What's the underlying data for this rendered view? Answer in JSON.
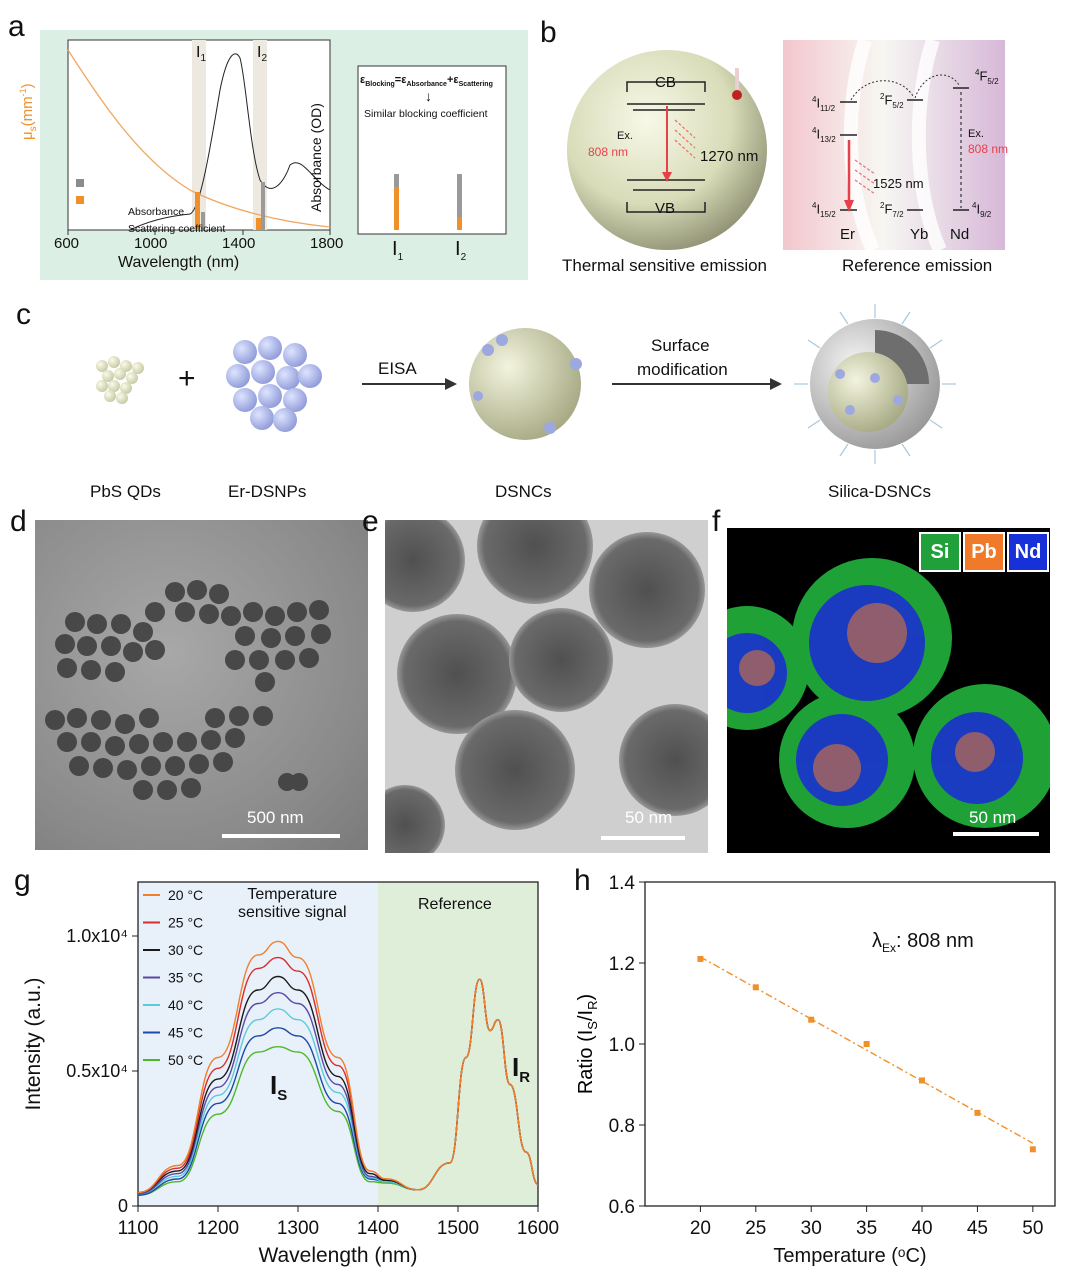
{
  "panels": {
    "a": {
      "label": "a",
      "ylabel_left_main": "μ",
      "ylabel_left_sub": "s",
      "ylabel_left_unit": "(mm",
      "ylabel_left_sup": "-1",
      "ylabel_left_close": ")",
      "ylabel_right": "Absorbance (OD)",
      "xlabel": "Wavelength (nm)",
      "xticks": [
        "600",
        "1000",
        "1400",
        "1800"
      ],
      "band1": "I",
      "band1_sub": "1",
      "band2": "I",
      "band2_sub": "2",
      "legend": [
        {
          "label": "Absorbance",
          "color": "#8c8c8c"
        },
        {
          "label": "Scattering coefficient",
          "color": "#f0902a"
        }
      ],
      "inset": {
        "eq_lhs": "ε",
        "eq_lhs_sub": "Blocking",
        "eq_eq": "=",
        "eq_t1": "ε",
        "eq_t1_sub": "Absorbance",
        "eq_plus": "+",
        "eq_t2": "ε",
        "eq_t2_sub": "Scattering",
        "arrow": "↓",
        "text": "Similar blocking coefficient",
        "bar1": "I",
        "bar1_sub": "1",
        "bar2": "I",
        "bar2_sub": "2"
      },
      "bg_color": "#dcefe4",
      "scatter_color": "#f0a860"
    },
    "b": {
      "label": "b",
      "cb": "CB",
      "vb": "VB",
      "ex": "Ex.",
      "ex_nm": "808 nm",
      "emission1": "1270 nm",
      "caption1": "Thermal sensitive emission",
      "levels": {
        "i112": "4",
        "i112_main": "I",
        "i112_sub": "11/2",
        "i132": "4",
        "i132_main": "I",
        "i132_sub": "13/2",
        "i152": "4",
        "i152_main": "I",
        "i152_sub": "15/2",
        "f52yb": "2",
        "f52yb_main": "F",
        "f52yb_sub": "5/2",
        "f72": "2",
        "f72_main": "F",
        "f72_sub": "7/2",
        "f52nd": "4",
        "f52nd_main": "F",
        "f52nd_sub": "5/2",
        "i92": "4",
        "i92_main": "I",
        "i92_sub": "9/2"
      },
      "emission2": "1525 nm",
      "ex2": "Ex.",
      "ex2_nm": "808 nm",
      "ion_er": "Er",
      "ion_yb": "Yb",
      "ion_nd": "Nd",
      "caption2": "Reference emission",
      "accent": "#e8404a"
    },
    "c": {
      "label": "c",
      "plus": "+",
      "arrow1": "EISA",
      "arrow2_line1": "Surface",
      "arrow2_line2": "modification",
      "items": [
        "PbS QDs",
        "Er-DSNPs",
        "DSNCs",
        "Silica-DSNCs"
      ]
    },
    "d": {
      "label": "d",
      "scale": "500 nm"
    },
    "e": {
      "label": "e",
      "scale": "50 nm"
    },
    "f": {
      "label": "f",
      "scale": "50 nm",
      "legend": [
        {
          "label": "Si",
          "color": "#1fa03a"
        },
        {
          "label": "Pb",
          "color": "#f07a2a"
        },
        {
          "label": "Nd",
          "color": "#1730d8"
        }
      ]
    },
    "g": {
      "label": "g",
      "region1_line1": "Temperature",
      "region1_line2": "sensitive signal",
      "region2": "Reference",
      "is_main": "I",
      "is_sub": "S",
      "ir_main": "I",
      "ir_sub": "R",
      "legend_unit": "°C"
    },
    "h": {
      "label": "h",
      "annotation_main": "λ",
      "annotation_sub": "Ex",
      "annotation_rest": ": 808 nm"
    }
  },
  "chart_data": [
    {
      "id": "g",
      "type": "line",
      "xlabel": "Wavelength (nm)",
      "ylabel": "Intensity (a.u.)",
      "xlim": [
        1100,
        1600
      ],
      "ylim": [
        0,
        12000
      ],
      "xticks": [
        1100,
        1200,
        1300,
        1400,
        1500,
        1600
      ],
      "yticks": [
        {
          "v": 0,
          "label": "0"
        },
        {
          "v": 5000,
          "label": "0.5x10⁴"
        },
        {
          "v": 10000,
          "label": "1.0x10⁴"
        }
      ],
      "x": [
        1100,
        1150,
        1200,
        1250,
        1275,
        1300,
        1350,
        1390,
        1410,
        1450,
        1490,
        1510,
        1527,
        1540,
        1550,
        1565,
        1585,
        1600
      ],
      "series": [
        {
          "name": "20 °C",
          "color": "#f0802a",
          "values": [
            500,
            1500,
            5500,
            9300,
            9800,
            9200,
            5500,
            1300,
            1000,
            600,
            1600,
            5500,
            8400,
            6500,
            6900,
            4500,
            2000,
            800
          ]
        },
        {
          "name": "25 °C",
          "color": "#d82d2d",
          "values": [
            500,
            1400,
            5100,
            8800,
            9200,
            8700,
            5200,
            1300,
            1000,
            600,
            1600,
            5500,
            8400,
            6500,
            6900,
            4500,
            2000,
            800
          ]
        },
        {
          "name": "30 °C",
          "color": "#1a1a1a",
          "values": [
            500,
            1300,
            4700,
            8000,
            8500,
            8000,
            4800,
            1200,
            950,
            600,
            1600,
            5500,
            8400,
            6500,
            6900,
            4500,
            2000,
            800
          ]
        },
        {
          "name": "35 °C",
          "color": "#5a4aa8",
          "values": [
            450,
            1200,
            4400,
            7500,
            7900,
            7500,
            4500,
            1100,
            950,
            600,
            1600,
            5500,
            8400,
            6500,
            6900,
            4500,
            2000,
            800
          ]
        },
        {
          "name": "40 °C",
          "color": "#5ccbd8",
          "values": [
            450,
            1100,
            4100,
            6900,
            7300,
            6900,
            4200,
            1050,
            900,
            600,
            1600,
            5500,
            8400,
            6500,
            6900,
            4500,
            2000,
            800
          ]
        },
        {
          "name": "45 °C",
          "color": "#1c4aa8",
          "values": [
            400,
            1000,
            3800,
            6300,
            6600,
            6300,
            3800,
            1000,
            900,
            600,
            1600,
            5500,
            8400,
            6500,
            6900,
            4500,
            2000,
            800
          ]
        },
        {
          "name": "50 °C",
          "color": "#4eb82a",
          "values": [
            400,
            900,
            3400,
            5700,
            5900,
            5700,
            3500,
            900,
            850,
            600,
            1600,
            5500,
            8400,
            6500,
            6900,
            4500,
            2000,
            800
          ]
        }
      ],
      "legend_position": "top-left",
      "regions": [
        {
          "from": 1100,
          "to": 1400,
          "color": "#e8f0fa"
        },
        {
          "from": 1400,
          "to": 1600,
          "color": "#deeed8"
        }
      ]
    },
    {
      "id": "h",
      "type": "scatter",
      "xlabel": "Temperature (ᵒC)",
      "ylabel": "Ratio (I",
      "ylabel_sub1": "S",
      "ylabel_mid": "/I",
      "ylabel_sub2": "R",
      "ylabel_end": ")",
      "xlim": [
        15,
        52
      ],
      "ylim": [
        0.6,
        1.4
      ],
      "xticks": [
        20,
        25,
        30,
        35,
        40,
        45,
        50
      ],
      "yticks": [
        0.6,
        0.8,
        1.0,
        1.2,
        1.4
      ],
      "ytick_labels": [
        "0.6",
        "0.8",
        "1.0",
        "1.2",
        "1.4"
      ],
      "x": [
        20,
        25,
        30,
        35,
        40,
        45,
        50
      ],
      "y": [
        1.21,
        1.14,
        1.06,
        1.0,
        0.91,
        0.83,
        0.74
      ],
      "fit": {
        "x0": 20,
        "y0": 1.215,
        "x1": 50,
        "y1": 0.755
      },
      "color": "#f0902a"
    }
  ]
}
